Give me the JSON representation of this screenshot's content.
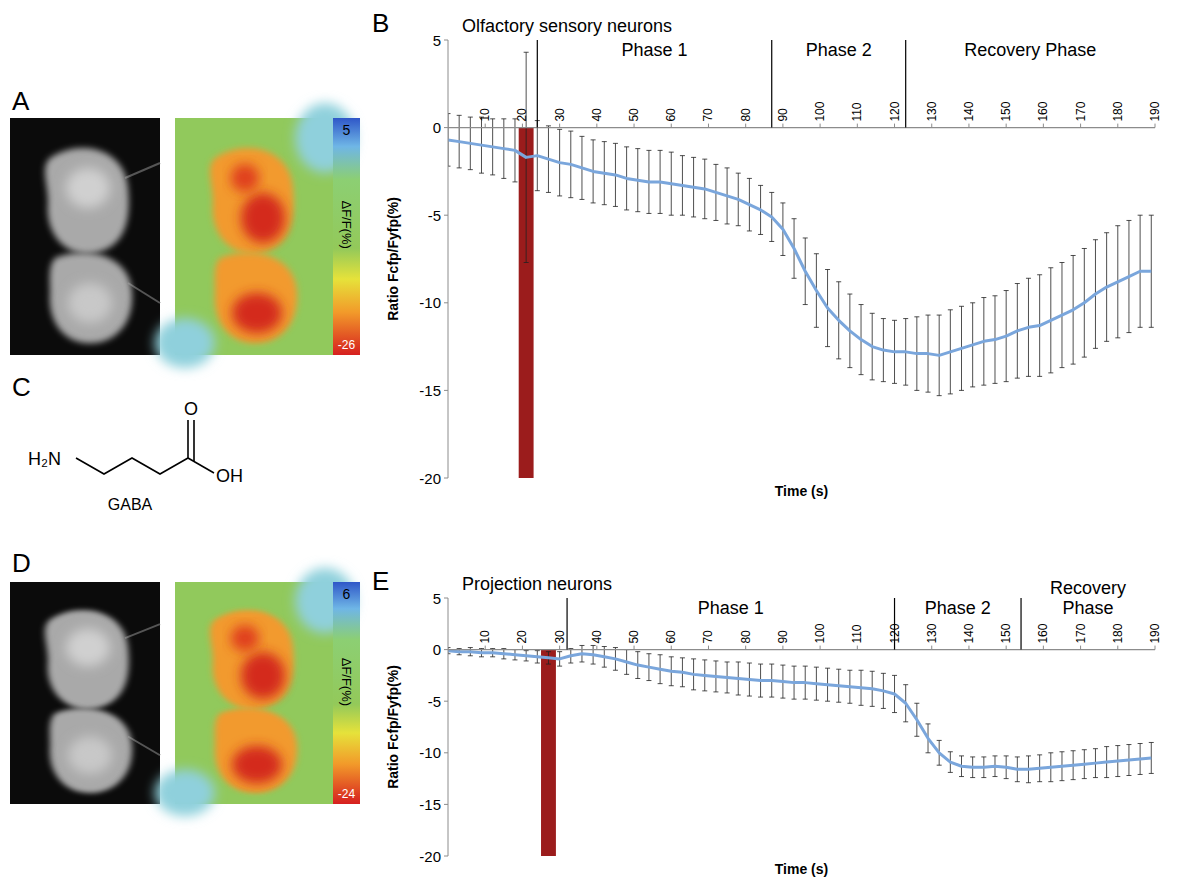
{
  "chart_data": [
    {
      "type": "line",
      "panel_label": "B",
      "title": "Olfactory sensory neurons",
      "x_label": "Time (s)",
      "y_label": "Ratio Fcfp/Fyfp(%)",
      "x": [
        0,
        3,
        6,
        9,
        12,
        15,
        18,
        21,
        24,
        27,
        30,
        33,
        36,
        39,
        42,
        45,
        48,
        51,
        54,
        57,
        60,
        63,
        66,
        69,
        72,
        75,
        78,
        81,
        84,
        87,
        90,
        93,
        96,
        99,
        102,
        105,
        108,
        111,
        114,
        117,
        120,
        123,
        126,
        129,
        132,
        135,
        138,
        141,
        144,
        147,
        150,
        153,
        156,
        159,
        162,
        165,
        168,
        171,
        174,
        177,
        180,
        183,
        186,
        189
      ],
      "values": [
        -0.7,
        -0.8,
        -0.9,
        -1.0,
        -1.1,
        -1.2,
        -1.3,
        -1.7,
        -1.6,
        -1.8,
        -2.0,
        -2.1,
        -2.3,
        -2.5,
        -2.6,
        -2.7,
        -2.9,
        -3.0,
        -3.1,
        -3.1,
        -3.2,
        -3.3,
        -3.4,
        -3.5,
        -3.7,
        -3.9,
        -4.1,
        -4.4,
        -4.7,
        -5.1,
        -5.8,
        -6.9,
        -8.2,
        -9.3,
        -10.3,
        -11.0,
        -11.6,
        -12.1,
        -12.5,
        -12.7,
        -12.8,
        -12.8,
        -12.9,
        -12.9,
        -13.0,
        -12.8,
        -12.6,
        -12.4,
        -12.2,
        -12.1,
        -11.9,
        -11.6,
        -11.4,
        -11.3,
        -11.0,
        -10.7,
        -10.4,
        -10.0,
        -9.5,
        -9.1,
        -8.8,
        -8.5,
        -8.2,
        -8.2
      ],
      "errors": [
        1.5,
        1.5,
        1.5,
        1.6,
        1.6,
        1.7,
        1.8,
        6.0,
        2.0,
        1.9,
        1.9,
        1.9,
        1.8,
        1.8,
        1.8,
        1.8,
        1.8,
        1.8,
        1.8,
        1.8,
        1.8,
        1.7,
        1.7,
        1.7,
        1.6,
        1.6,
        1.5,
        1.5,
        1.4,
        1.4,
        1.5,
        1.7,
        1.9,
        2.1,
        2.2,
        2.2,
        2.1,
        2.0,
        1.9,
        1.8,
        1.8,
        1.9,
        2.1,
        2.2,
        2.3,
        2.4,
        2.4,
        2.4,
        2.5,
        2.5,
        2.6,
        2.7,
        2.8,
        2.9,
        3.0,
        3.0,
        3.1,
        3.1,
        3.1,
        3.1,
        3.2,
        3.2,
        3.2,
        3.2
      ],
      "color": "#7aa6dc",
      "xlim": [
        0,
        190
      ],
      "ylim": [
        -20,
        5
      ],
      "xticks": [
        10,
        20,
        30,
        40,
        50,
        60,
        70,
        80,
        90,
        100,
        110,
        120,
        130,
        140,
        150,
        160,
        170,
        180,
        190
      ],
      "yticks": [
        -20,
        -15,
        -10,
        -5,
        0,
        5
      ],
      "stimulus": {
        "x0": 19,
        "x1": 23,
        "color": "#9b1c1c"
      },
      "phases": [
        {
          "label": "Phase 1",
          "start": 24,
          "end": 87
        },
        {
          "label": "Phase 2",
          "start": 87,
          "end": 123
        },
        {
          "label": "Recovery Phase",
          "start": 123,
          "end": 190
        }
      ]
    },
    {
      "type": "line",
      "panel_label": "E",
      "title": "Projection neurons",
      "x_label": "Time (s)",
      "y_label": "Ratio Fcfp/Fyfp(%)",
      "x": [
        0,
        3,
        6,
        9,
        12,
        15,
        18,
        21,
        24,
        27,
        30,
        33,
        36,
        39,
        42,
        45,
        48,
        51,
        54,
        57,
        60,
        63,
        66,
        69,
        72,
        75,
        78,
        81,
        84,
        87,
        90,
        93,
        96,
        99,
        102,
        105,
        108,
        111,
        114,
        117,
        120,
        123,
        126,
        129,
        132,
        135,
        138,
        141,
        144,
        147,
        150,
        153,
        156,
        159,
        162,
        165,
        168,
        171,
        174,
        177,
        180,
        183,
        186,
        189
      ],
      "values": [
        -0.1,
        -0.2,
        -0.2,
        -0.3,
        -0.3,
        -0.4,
        -0.5,
        -0.6,
        -0.7,
        -0.8,
        -0.9,
        -0.6,
        -0.4,
        -0.5,
        -0.7,
        -0.9,
        -1.2,
        -1.5,
        -1.7,
        -1.9,
        -2.1,
        -2.2,
        -2.4,
        -2.5,
        -2.6,
        -2.7,
        -2.8,
        -2.9,
        -3.0,
        -3.0,
        -3.1,
        -3.2,
        -3.2,
        -3.3,
        -3.4,
        -3.5,
        -3.6,
        -3.7,
        -3.8,
        -4.0,
        -4.3,
        -5.2,
        -6.8,
        -8.6,
        -10.0,
        -10.9,
        -11.3,
        -11.4,
        -11.4,
        -11.3,
        -11.4,
        -11.6,
        -11.6,
        -11.5,
        -11.4,
        -11.3,
        -11.2,
        -11.1,
        -11.0,
        -10.9,
        -10.8,
        -10.7,
        -10.6,
        -10.5
      ],
      "errors": [
        0.3,
        0.3,
        0.4,
        0.4,
        0.4,
        0.5,
        0.5,
        0.5,
        0.6,
        0.6,
        0.7,
        0.7,
        0.8,
        0.9,
        1.0,
        1.1,
        1.2,
        1.3,
        1.3,
        1.4,
        1.4,
        1.4,
        1.5,
        1.5,
        1.5,
        1.5,
        1.6,
        1.6,
        1.6,
        1.6,
        1.6,
        1.6,
        1.6,
        1.6,
        1.6,
        1.6,
        1.6,
        1.7,
        1.7,
        1.7,
        1.8,
        1.8,
        1.6,
        1.4,
        1.2,
        1.0,
        1.0,
        1.0,
        1.0,
        1.0,
        1.1,
        1.2,
        1.3,
        1.3,
        1.4,
        1.4,
        1.4,
        1.4,
        1.4,
        1.5,
        1.5,
        1.5,
        1.5,
        1.5
      ],
      "color": "#7aa6dc",
      "xlim": [
        0,
        190
      ],
      "ylim": [
        -20,
        5
      ],
      "xticks": [
        10,
        20,
        30,
        40,
        50,
        60,
        70,
        80,
        90,
        100,
        110,
        120,
        130,
        140,
        150,
        160,
        170,
        180,
        190
      ],
      "yticks": [
        -20,
        -15,
        -10,
        -5,
        0,
        5
      ],
      "stimulus": {
        "x0": 25,
        "x1": 29,
        "color": "#9b1c1c"
      },
      "phases": [
        {
          "label": "Phase 1",
          "start": 32,
          "end": 120
        },
        {
          "label": "Phase 2",
          "start": 120,
          "end": 154
        },
        {
          "label": "Recovery Phase",
          "start": 154,
          "end": 190
        }
      ]
    }
  ],
  "images": [
    {
      "panel_label": "A",
      "colorbar": {
        "max": 5,
        "min": -26,
        "label": "ΔF/F(%)"
      }
    },
    {
      "panel_label": "D",
      "colorbar": {
        "max": 6,
        "min": -24,
        "label": "ΔF/F(%)"
      }
    }
  ],
  "structure": {
    "panel_label": "C",
    "amine": "H₂N",
    "carbonyl": "O",
    "hydroxyl": "OH",
    "name": "GABA"
  }
}
